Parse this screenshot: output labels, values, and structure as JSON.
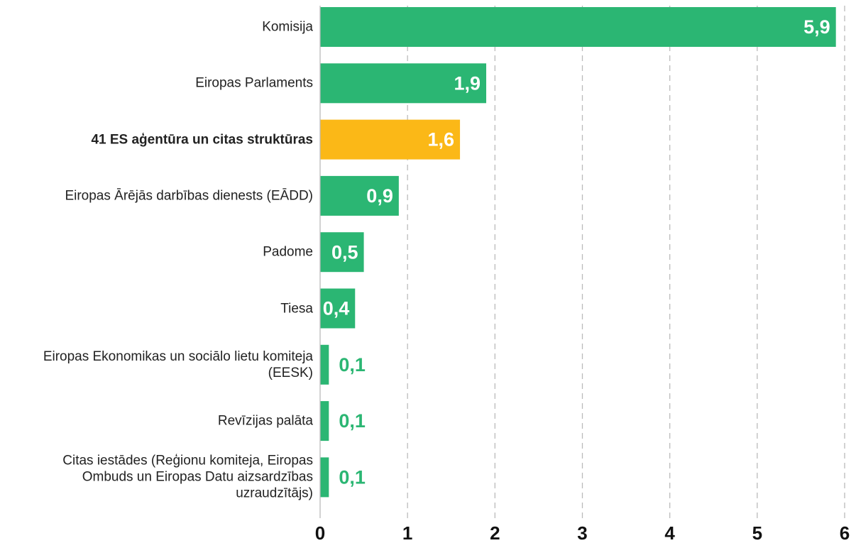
{
  "chart_data": {
    "type": "bar",
    "orientation": "horizontal",
    "categories": [
      "Komisija",
      "Eiropas Parlaments",
      "41 ES aģentūra un citas struktūras",
      "Eiropas Ārējās darbības dienests (EĀDD)",
      "Padome",
      "Tiesa",
      "Eiropas Ekonomikas un sociālo lietu komiteja\n(EESK)",
      "Revīzijas palāta",
      "Citas iestādes (Reģionu komiteja, Eiropas\nOmbuds un Eiropas Datu aizsardzības\nuzraudzītājs)"
    ],
    "values": [
      5.9,
      1.9,
      1.6,
      0.9,
      0.5,
      0.4,
      0.1,
      0.1,
      0.1
    ],
    "value_labels": [
      "5,9",
      "1,9",
      "1,6",
      "0,9",
      "0,5",
      "0,4",
      "0,1",
      "0,1",
      "0,1"
    ],
    "colors": [
      "#2bb673",
      "#2bb673",
      "#fbb817",
      "#2bb673",
      "#2bb673",
      "#2bb673",
      "#2bb673",
      "#2bb673",
      "#2bb673"
    ],
    "xlim": [
      0,
      6
    ],
    "xticks": [
      0,
      1,
      2,
      3,
      4,
      5,
      6
    ],
    "grid": true
  }
}
